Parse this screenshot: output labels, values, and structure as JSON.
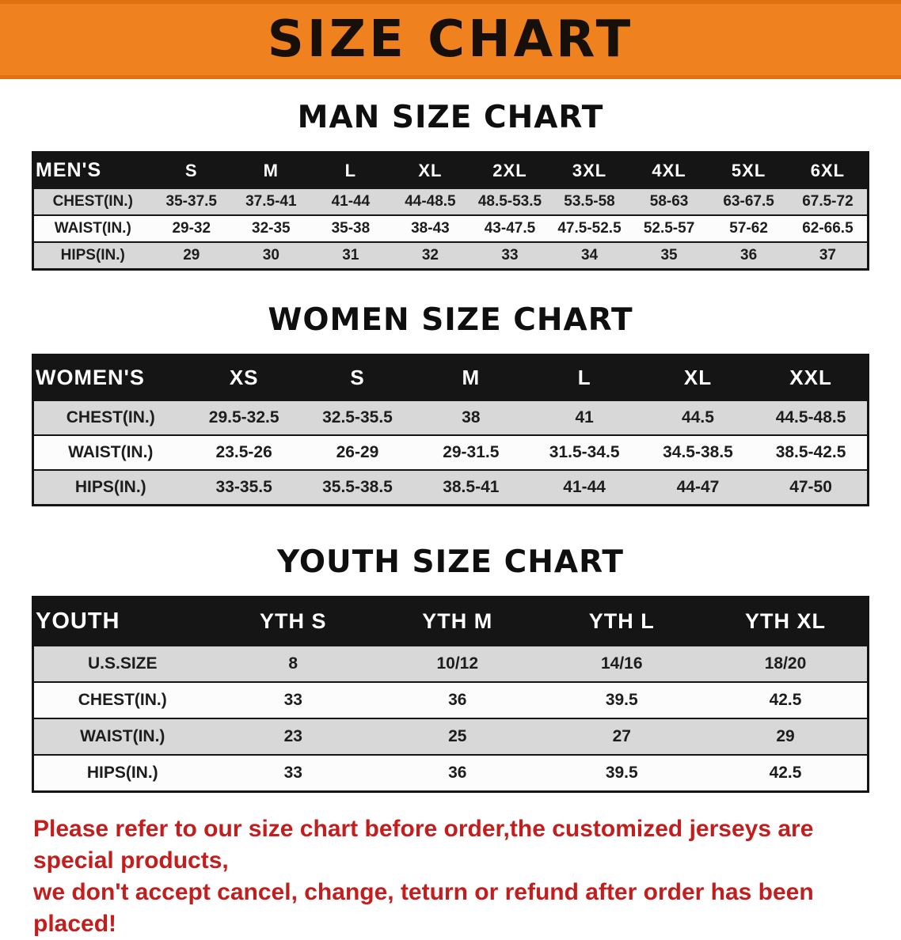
{
  "banner": {
    "title": "SIZE CHART"
  },
  "chart_data": [
    {
      "type": "table",
      "title": "MAN SIZE CHART",
      "corner_label": "MEN'S",
      "columns": [
        "S",
        "M",
        "L",
        "XL",
        "2XL",
        "3XL",
        "4XL",
        "5XL",
        "6XL"
      ],
      "rows": [
        {
          "label": "CHEST(IN.)",
          "values": [
            "35-37.5",
            "37.5-41",
            "41-44",
            "44-48.5",
            "48.5-53.5",
            "53.5-58",
            "58-63",
            "63-67.5",
            "67.5-72"
          ]
        },
        {
          "label": "WAIST(IN.)",
          "values": [
            "29-32",
            "32-35",
            "35-38",
            "38-43",
            "43-47.5",
            "47.5-52.5",
            "52.5-57",
            "57-62",
            "62-66.5"
          ]
        },
        {
          "label": "HIPS(IN.)",
          "values": [
            "29",
            "30",
            "31",
            "32",
            "33",
            "34",
            "35",
            "36",
            "37"
          ]
        }
      ]
    },
    {
      "type": "table",
      "title": "WOMEN SIZE CHART",
      "corner_label": "WOMEN'S",
      "columns": [
        "XS",
        "S",
        "M",
        "L",
        "XL",
        "XXL"
      ],
      "rows": [
        {
          "label": "CHEST(IN.)",
          "values": [
            "29.5-32.5",
            "32.5-35.5",
            "38",
            "41",
            "44.5",
            "44.5-48.5"
          ]
        },
        {
          "label": "WAIST(IN.)",
          "values": [
            "23.5-26",
            "26-29",
            "29-31.5",
            "31.5-34.5",
            "34.5-38.5",
            "38.5-42.5"
          ]
        },
        {
          "label": "HIPS(IN.)",
          "values": [
            "33-35.5",
            "35.5-38.5",
            "38.5-41",
            "41-44",
            "44-47",
            "47-50"
          ]
        }
      ]
    },
    {
      "type": "table",
      "title": "YOUTH SIZE CHART",
      "corner_label": "YOUTH",
      "columns": [
        "YTH S",
        "YTH M",
        "YTH L",
        "YTH XL"
      ],
      "rows": [
        {
          "label": "U.S.SIZE",
          "values": [
            "8",
            "10/12",
            "14/16",
            "18/20"
          ]
        },
        {
          "label": "CHEST(IN.)",
          "values": [
            "33",
            "36",
            "39.5",
            "42.5"
          ]
        },
        {
          "label": "WAIST(IN.)",
          "values": [
            "23",
            "25",
            "27",
            "29"
          ]
        },
        {
          "label": "HIPS(IN.)",
          "values": [
            "33",
            "36",
            "39.5",
            "42.5"
          ]
        }
      ]
    }
  ],
  "footer": {
    "lines": [
      "Please refer to our size chart before order,the customized jerseys are special products,",
      "we don't accept cancel, change, teturn or refund after order has been placed!"
    ],
    "text_color": "#c21e1e"
  },
  "colors": {
    "banner_orange": "#f0811f",
    "header_black": "#151515",
    "row_gray": "#d8d8d8",
    "row_white": "#fcfcfc"
  }
}
